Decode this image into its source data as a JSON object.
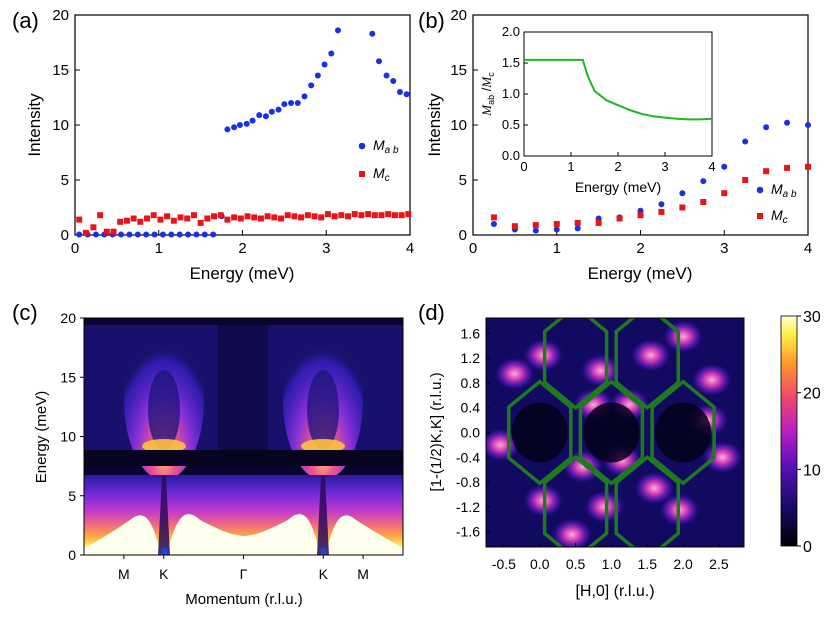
{
  "chart_data": [
    {
      "panel": "a",
      "panel_label": "(a)",
      "type": "scatter",
      "xlabel": "Energy (meV)",
      "ylabel": "Intensity",
      "xlim": [
        0,
        4
      ],
      "ylim": [
        0,
        20
      ],
      "xticks": [
        "0",
        "1",
        "2",
        "3",
        "4"
      ],
      "yticks": [
        "0",
        "5",
        "10",
        "15",
        "20"
      ],
      "series": [
        {
          "name": "Mab",
          "legend": "M",
          "legend_sub": "a b",
          "marker": "circle",
          "color": "#1a2fe6",
          "x": [
            0.05,
            0.15,
            0.25,
            0.35,
            0.45,
            0.55,
            0.65,
            0.75,
            0.85,
            0.95,
            1.05,
            1.15,
            1.25,
            1.35,
            1.45,
            1.55,
            1.65,
            1.75,
            1.82,
            1.9,
            1.97,
            2.05,
            2.12,
            2.2,
            2.28,
            2.35,
            2.43,
            2.5,
            2.58,
            2.66,
            2.74,
            2.82,
            2.9,
            2.98,
            3.06,
            3.14,
            3.55,
            3.63,
            3.72,
            3.8,
            3.88,
            3.96
          ],
          "y": [
            0.05,
            0.05,
            0.05,
            0.05,
            0.05,
            0.05,
            0.05,
            0.05,
            0.05,
            0.05,
            0.05,
            0.05,
            0.05,
            0.05,
            0.05,
            0.05,
            0.05,
            1.7,
            9.6,
            9.8,
            10.0,
            10.1,
            10.4,
            10.9,
            10.8,
            11.2,
            11.4,
            11.9,
            12.0,
            12.0,
            12.6,
            13.6,
            14.5,
            15.5,
            16.5,
            18.6,
            18.3,
            15.8,
            14.5,
            14.0,
            13.0,
            12.8
          ]
        },
        {
          "name": "Mc",
          "legend": "M",
          "legend_sub": "c",
          "marker": "square",
          "color": "#e8131b",
          "x": [
            0.05,
            0.13,
            0.22,
            0.3,
            0.38,
            0.46,
            0.54,
            0.62,
            0.7,
            0.78,
            0.86,
            0.94,
            1.02,
            1.1,
            1.18,
            1.26,
            1.34,
            1.42,
            1.5,
            1.58,
            1.66,
            1.74,
            1.82,
            1.9,
            1.98,
            2.06,
            2.14,
            2.22,
            2.3,
            2.38,
            2.46,
            2.54,
            2.62,
            2.7,
            2.78,
            2.86,
            2.94,
            3.02,
            3.1,
            3.18,
            3.26,
            3.34,
            3.42,
            3.5,
            3.58,
            3.66,
            3.74,
            3.82,
            3.9,
            3.98
          ],
          "y": [
            1.4,
            0.2,
            0.7,
            1.8,
            0.3,
            0.3,
            1.2,
            1.3,
            1.5,
            1.2,
            1.5,
            1.8,
            1.4,
            1.7,
            1.3,
            1.6,
            1.5,
            1.8,
            1.1,
            1.5,
            1.7,
            1.8,
            1.4,
            1.6,
            1.5,
            1.7,
            1.6,
            1.5,
            1.7,
            1.6,
            1.5,
            1.8,
            1.7,
            1.6,
            1.8,
            1.7,
            1.6,
            1.9,
            1.7,
            1.8,
            1.7,
            1.9,
            1.8,
            1.9,
            1.8,
            1.8,
            1.9,
            1.8,
            1.8,
            1.9
          ]
        }
      ]
    },
    {
      "panel": "b",
      "panel_label": "(b)",
      "type": "scatter",
      "xlabel": "Energy (meV)",
      "ylabel": "Intensity",
      "xlim": [
        0,
        4
      ],
      "ylim": [
        0,
        20
      ],
      "xticks": [
        "0",
        "1",
        "2",
        "3",
        "4"
      ],
      "yticks": [
        "0",
        "5",
        "10",
        "15",
        "20"
      ],
      "series": [
        {
          "name": "Mab",
          "legend": "M",
          "legend_sub": "a b",
          "marker": "circle",
          "color": "#1a2fe6",
          "x": [
            0.25,
            0.5,
            0.75,
            1.0,
            1.25,
            1.5,
            1.75,
            2.0,
            2.25,
            2.5,
            2.75,
            3.0,
            3.25,
            3.5,
            3.75,
            4.0
          ],
          "y": [
            1.0,
            0.5,
            0.4,
            0.5,
            0.6,
            1.5,
            1.6,
            2.2,
            2.8,
            3.8,
            4.9,
            6.2,
            8.5,
            9.8,
            10.2,
            10.0
          ]
        },
        {
          "name": "Mc",
          "legend": "M",
          "legend_sub": "c",
          "marker": "square",
          "color": "#e8131b",
          "x": [
            0.25,
            0.5,
            0.75,
            1.0,
            1.25,
            1.5,
            1.75,
            2.0,
            2.25,
            2.5,
            2.75,
            3.0,
            3.25,
            3.5,
            3.75,
            4.0
          ],
          "y": [
            1.6,
            0.8,
            0.9,
            1.0,
            1.1,
            1.1,
            1.5,
            1.8,
            2.1,
            2.5,
            3.0,
            3.8,
            5.0,
            5.8,
            6.1,
            6.2
          ]
        }
      ],
      "inset": {
        "type": "line",
        "xlabel": "Energy (meV)",
        "ylabel": "Mab/Mc",
        "ylabel_parts": [
          "M",
          "ab",
          " /",
          "M",
          "c"
        ],
        "xlim": [
          0,
          4
        ],
        "ylim": [
          0,
          2
        ],
        "xticks": [
          "0",
          "1",
          "2",
          "3",
          "4"
        ],
        "yticks": [
          "0.0",
          "0.5",
          "1.0",
          "1.5",
          "2.0"
        ],
        "color": "#22b522",
        "x": [
          0,
          0.25,
          0.5,
          0.75,
          1.0,
          1.25,
          1.35,
          1.5,
          1.75,
          2.0,
          2.25,
          2.5,
          2.75,
          3.0,
          3.25,
          3.5,
          3.75,
          4.0
        ],
        "y": [
          1.55,
          1.55,
          1.55,
          1.55,
          1.55,
          1.55,
          1.3,
          1.05,
          0.9,
          0.82,
          0.74,
          0.68,
          0.64,
          0.62,
          0.6,
          0.59,
          0.59,
          0.6
        ]
      }
    },
    {
      "panel": "c",
      "panel_label": "(c)",
      "type": "heatmap",
      "xlabel": "Momentum (r.l.u.)",
      "ylabel": "Energy (meV)",
      "ylim": [
        0,
        20
      ],
      "yticks": [
        "0",
        "5",
        "10",
        "15",
        "20"
      ],
      "xticks": [
        "M",
        "K",
        "Γ",
        "K",
        "M"
      ],
      "xtick_positions": [
        -1.5,
        -1,
        0,
        1,
        1.5
      ],
      "xlim": [
        -2,
        2
      ]
    },
    {
      "panel": "d",
      "panel_label": "(d)",
      "type": "heatmap",
      "xlabel": "[H,0] (r.l.u.)",
      "ylabel": "[1-(1/2)K,K] (r.l.u.)",
      "xlim": [
        -0.75,
        2.85
      ],
      "ylim": [
        -1.85,
        1.85
      ],
      "xticks": [
        "-0.5",
        "0.0",
        "0.5",
        "1.0",
        "1.5",
        "2.0",
        "2.5"
      ],
      "yticks": [
        "1.6",
        "1.2",
        "0.8",
        "0.4",
        "0.0",
        "-0.4",
        "-0.8",
        "-1.2",
        "-1.6"
      ],
      "hexagon_color": "#1f7a1f",
      "colorbar": {
        "min": 0,
        "max": 30,
        "ticks": [
          "30",
          "20",
          "10",
          "0"
        ]
      }
    }
  ]
}
